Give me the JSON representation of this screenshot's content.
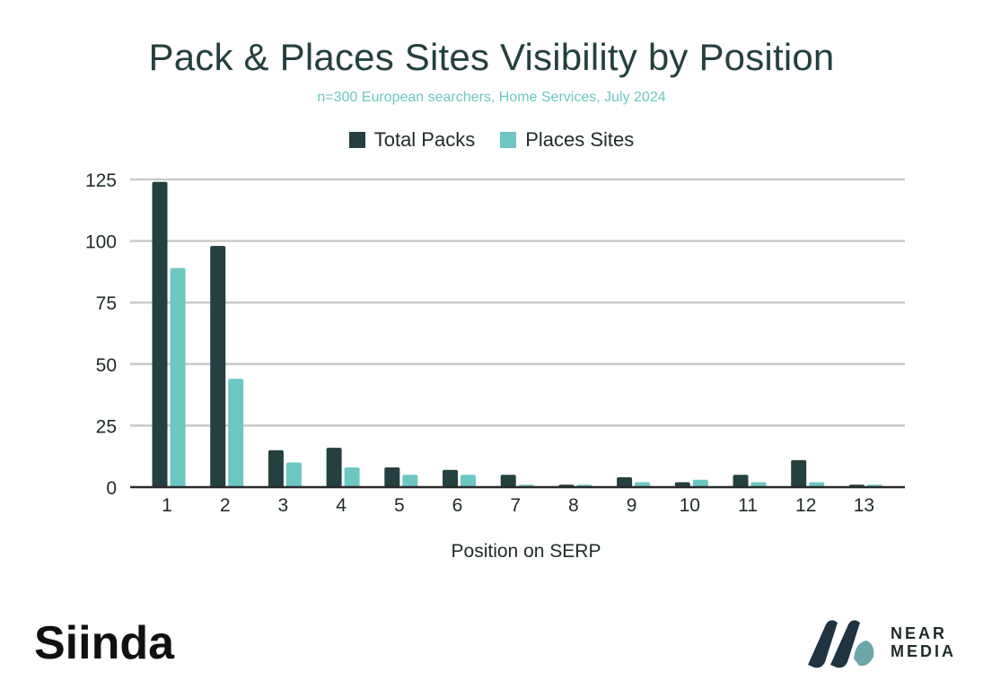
{
  "chart_data": {
    "type": "bar",
    "title": "Pack & Places Sites Visibility by Position",
    "subtitle": "n=300 European searchers, Home Services, July 2024",
    "xlabel": "Position on SERP",
    "ylabel": "",
    "ylim": [
      0,
      125
    ],
    "yticks": [
      0,
      25,
      50,
      75,
      100,
      125
    ],
    "categories": [
      "1",
      "2",
      "3",
      "4",
      "5",
      "6",
      "7",
      "8",
      "9",
      "10",
      "11",
      "12",
      "13"
    ],
    "series": [
      {
        "name": "Total Packs",
        "color": "#24403F",
        "values": [
          124,
          98,
          15,
          16,
          8,
          7,
          5,
          1,
          4,
          2,
          5,
          11,
          1
        ]
      },
      {
        "name": "Places Sites",
        "color": "#6CC6C2",
        "values": [
          89,
          44,
          10,
          8,
          5,
          5,
          1,
          1,
          2,
          3,
          2,
          2,
          1
        ]
      }
    ],
    "grid": true,
    "legend_position": "top-center"
  },
  "logos": {
    "left": {
      "text": "Siinda",
      "icon": "siinda-logo-icon"
    },
    "right": {
      "line1": "NEAR",
      "line2": "MEDIA",
      "icon": "near-media-logo-icon"
    }
  }
}
